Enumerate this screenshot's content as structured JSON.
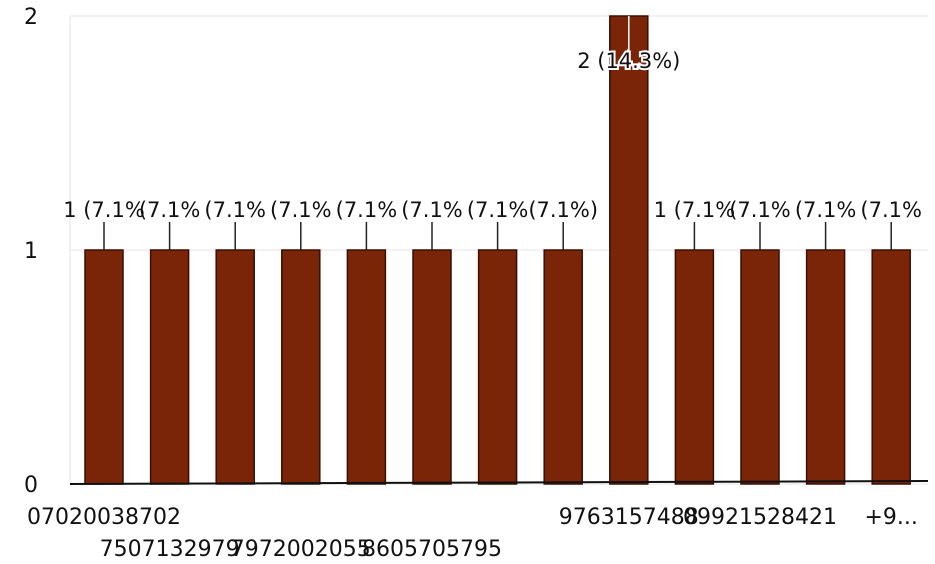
{
  "chart_data": {
    "type": "bar",
    "categories": [
      "07020038702",
      "7507132979",
      "",
      "7972002055",
      "",
      "8605705795",
      "",
      "",
      "9763157488",
      "",
      "09921528421",
      "",
      "+9..."
    ],
    "values": [
      1,
      1,
      1,
      1,
      1,
      1,
      1,
      1,
      2,
      1,
      1,
      1,
      1
    ],
    "data_labels": [
      "1 (7.1%",
      "(7.1%",
      "(7.1%",
      "(7.1%",
      "(7.1%",
      "(7.1%",
      "(7.1%",
      "(7.1%)",
      "2 (14.3%)",
      "1 (7.1%",
      "(7.1%",
      "(7.1%",
      "(7.1%"
    ],
    "y_ticks": [
      "0",
      "1",
      "2"
    ],
    "ylim": [
      0,
      2
    ],
    "bar_color": "#7a2408",
    "grid": true
  }
}
